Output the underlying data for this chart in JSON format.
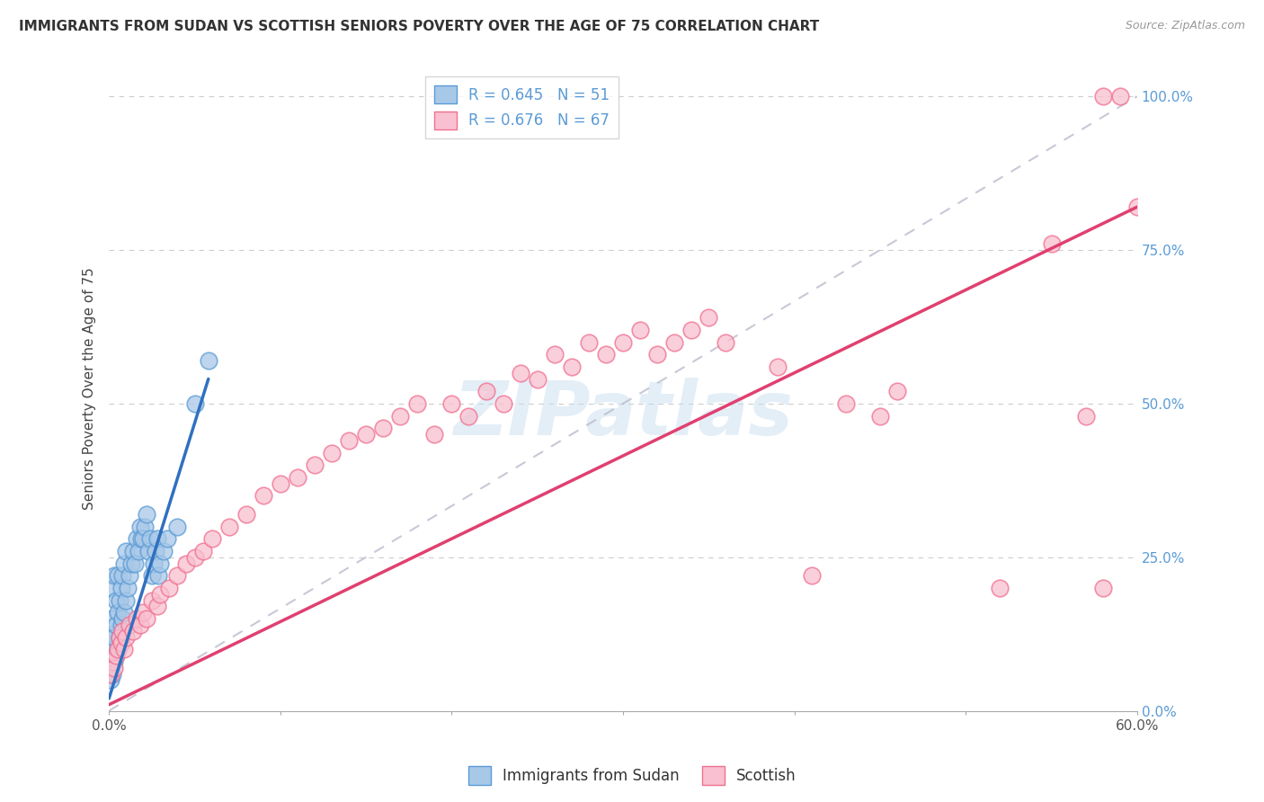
{
  "title": "IMMIGRANTS FROM SUDAN VS SCOTTISH SENIORS POVERTY OVER THE AGE OF 75 CORRELATION CHART",
  "source": "Source: ZipAtlas.com",
  "ylabel": "Seniors Poverty Over the Age of 75",
  "xmin": 0.0,
  "xmax": 0.6,
  "ymin": 0.0,
  "ymax": 1.05,
  "right_yticks": [
    0.0,
    0.25,
    0.5,
    0.75,
    1.0
  ],
  "right_yticklabels": [
    "0.0%",
    "25.0%",
    "50.0%",
    "75.0%",
    "100.0%"
  ],
  "xticks": [
    0.0,
    0.1,
    0.2,
    0.3,
    0.4,
    0.5,
    0.6
  ],
  "xticklabels": [
    "0.0%",
    "",
    "",
    "",
    "",
    "",
    "60.0%"
  ],
  "legend_r1": "R = 0.645",
  "legend_n1": "N = 51",
  "legend_r2": "R = 0.676",
  "legend_n2": "N = 67",
  "color_blue_fill": "#a8c8e8",
  "color_blue_edge": "#5b9bd5",
  "color_pink_fill": "#f8c0d0",
  "color_pink_edge": "#f07090",
  "color_blue_line": "#3070c0",
  "color_pink_line": "#e04070",
  "watermark": "ZIPatlas",
  "blue_scatter_x": [
    0.001,
    0.001,
    0.001,
    0.002,
    0.002,
    0.002,
    0.002,
    0.003,
    0.003,
    0.003,
    0.004,
    0.004,
    0.004,
    0.005,
    0.005,
    0.005,
    0.006,
    0.006,
    0.007,
    0.007,
    0.008,
    0.008,
    0.009,
    0.009,
    0.01,
    0.01,
    0.011,
    0.012,
    0.013,
    0.014,
    0.015,
    0.016,
    0.017,
    0.018,
    0.019,
    0.02,
    0.021,
    0.022,
    0.023,
    0.024,
    0.025,
    0.026,
    0.027,
    0.028,
    0.029,
    0.03,
    0.032,
    0.034,
    0.04,
    0.05,
    0.058
  ],
  "blue_scatter_y": [
    0.05,
    0.08,
    0.12,
    0.06,
    0.1,
    0.15,
    0.2,
    0.08,
    0.12,
    0.22,
    0.09,
    0.14,
    0.18,
    0.1,
    0.16,
    0.22,
    0.12,
    0.18,
    0.14,
    0.2,
    0.15,
    0.22,
    0.16,
    0.24,
    0.18,
    0.26,
    0.2,
    0.22,
    0.24,
    0.26,
    0.24,
    0.28,
    0.26,
    0.3,
    0.28,
    0.28,
    0.3,
    0.32,
    0.26,
    0.28,
    0.22,
    0.24,
    0.26,
    0.28,
    0.22,
    0.24,
    0.26,
    0.28,
    0.3,
    0.5,
    0.57
  ],
  "pink_scatter_x": [
    0.001,
    0.002,
    0.003,
    0.004,
    0.005,
    0.006,
    0.007,
    0.008,
    0.009,
    0.01,
    0.012,
    0.014,
    0.016,
    0.018,
    0.02,
    0.022,
    0.025,
    0.028,
    0.03,
    0.035,
    0.04,
    0.045,
    0.05,
    0.055,
    0.06,
    0.07,
    0.08,
    0.09,
    0.1,
    0.11,
    0.12,
    0.13,
    0.14,
    0.15,
    0.16,
    0.17,
    0.18,
    0.19,
    0.2,
    0.21,
    0.22,
    0.23,
    0.24,
    0.25,
    0.26,
    0.27,
    0.28,
    0.29,
    0.3,
    0.31,
    0.32,
    0.33,
    0.34,
    0.35,
    0.36,
    0.39,
    0.41,
    0.43,
    0.45,
    0.46,
    0.52,
    0.55,
    0.57,
    0.58,
    0.58,
    0.59,
    0.6
  ],
  "pink_scatter_y": [
    0.06,
    0.08,
    0.07,
    0.09,
    0.1,
    0.12,
    0.11,
    0.13,
    0.1,
    0.12,
    0.14,
    0.13,
    0.15,
    0.14,
    0.16,
    0.15,
    0.18,
    0.17,
    0.19,
    0.2,
    0.22,
    0.24,
    0.25,
    0.26,
    0.28,
    0.3,
    0.32,
    0.35,
    0.37,
    0.38,
    0.4,
    0.42,
    0.44,
    0.45,
    0.46,
    0.48,
    0.5,
    0.45,
    0.5,
    0.48,
    0.52,
    0.5,
    0.55,
    0.54,
    0.58,
    0.56,
    0.6,
    0.58,
    0.6,
    0.62,
    0.58,
    0.6,
    0.62,
    0.64,
    0.6,
    0.56,
    0.22,
    0.5,
    0.48,
    0.52,
    0.2,
    0.76,
    0.48,
    1.0,
    0.2,
    1.0,
    0.82
  ],
  "blue_trendline_x": [
    0.0,
    0.058
  ],
  "blue_trendline_y": [
    0.02,
    0.54
  ],
  "pink_trendline_x": [
    0.0,
    0.6
  ],
  "pink_trendline_y": [
    0.01,
    0.82
  ],
  "diag_line_x": [
    0.0,
    0.6
  ],
  "diag_line_y": [
    0.0,
    1.0
  ]
}
